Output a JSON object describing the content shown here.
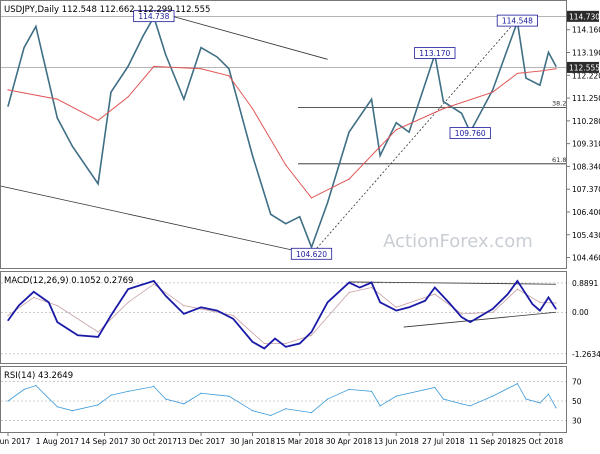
{
  "chart_data": [
    {
      "type": "candlestick",
      "title": "USDJPY,Daily",
      "ohlc_text": "112.548 112.662 112.299 112.555",
      "watermark": "ActionForex.com",
      "y_ticks": [
        104.46,
        105.43,
        106.4,
        107.37,
        108.34,
        109.31,
        110.28,
        111.25,
        112.22,
        113.19,
        114.16
      ],
      "y_tick_labels": [
        "104.460",
        "105.430",
        "106.400",
        "107.370",
        "108.340",
        "109.310",
        "110.280",
        "111.250",
        "112.220",
        "113.190",
        "114.160"
      ],
      "ylim": [
        104.1,
        115.0
      ],
      "price_levels": [
        {
          "label": "114.730",
          "value": 114.73,
          "color": "#333333"
        },
        {
          "label": "112.555",
          "value": 112.555,
          "color": "#333333"
        }
      ],
      "annotations": [
        {
          "text": "114.738",
          "value": 114.738,
          "date": "2017-10-30"
        },
        {
          "text": "104.620",
          "value": 104.62,
          "date": "2018-03-26"
        },
        {
          "text": "113.170",
          "value": 113.17,
          "date": "2018-07-19"
        },
        {
          "text": "109.760",
          "value": 109.76,
          "date": "2018-08-21"
        },
        {
          "text": "114.548",
          "value": 114.548,
          "date": "2018-10-04"
        }
      ],
      "fib_levels": [
        {
          "label": "38.2",
          "value": 110.85
        },
        {
          "label": "61.8",
          "value": 108.45
        }
      ],
      "series": [
        {
          "name": "Close",
          "color": "#3f6f85",
          "x": [
            "2017-06-16",
            "2017-07-01",
            "2017-07-12",
            "2017-08-01",
            "2017-08-15",
            "2017-09-08",
            "2017-09-20",
            "2017-10-06",
            "2017-10-20",
            "2017-10-30",
            "2017-11-10",
            "2017-11-27",
            "2017-12-13",
            "2017-12-28",
            "2018-01-08",
            "2018-01-30",
            "2018-02-16",
            "2018-03-02",
            "2018-03-15",
            "2018-03-26",
            "2018-04-10",
            "2018-04-30",
            "2018-05-21",
            "2018-05-29",
            "2018-06-13",
            "2018-06-25",
            "2018-07-19",
            "2018-07-27",
            "2018-08-13",
            "2018-08-21",
            "2018-09-11",
            "2018-10-04",
            "2018-10-12",
            "2018-10-25",
            "2018-11-02",
            "2018-11-09"
          ],
          "values": [
            110.9,
            113.4,
            114.3,
            110.4,
            109.2,
            107.6,
            111.5,
            112.6,
            113.9,
            114.7,
            113.1,
            111.2,
            113.4,
            113.0,
            112.5,
            108.8,
            106.3,
            105.9,
            106.2,
            104.9,
            106.8,
            109.8,
            111.2,
            108.8,
            110.2,
            109.8,
            113.1,
            111.1,
            110.6,
            109.8,
            111.6,
            114.5,
            112.1,
            111.8,
            113.2,
            112.6
          ]
        },
        {
          "name": "MA",
          "color": "#e05555",
          "x": [
            "2017-06-16",
            "2017-08-01",
            "2017-09-08",
            "2017-10-06",
            "2017-10-30",
            "2017-12-13",
            "2018-01-08",
            "2018-01-30",
            "2018-03-02",
            "2018-03-26",
            "2018-04-30",
            "2018-06-13",
            "2018-07-27",
            "2018-09-11",
            "2018-10-04",
            "2018-10-25",
            "2018-11-09"
          ],
          "values": [
            111.6,
            111.2,
            110.3,
            111.3,
            112.6,
            112.5,
            112.2,
            110.8,
            108.4,
            107.0,
            107.8,
            109.9,
            110.8,
            111.5,
            112.3,
            112.4,
            112.5
          ]
        }
      ],
      "x_tick_labels": [
        "16 Jun 2017",
        "1 Aug 2017",
        "14 Sep 2017",
        "30 Oct 2017",
        "13 Dec 2017",
        "30 Jan 2018",
        "15 Mar 2018",
        "30 Apr 2018",
        "13 Jun 2018",
        "27 Jul 2018",
        "11 Sep 2018",
        "25 Oct 2018"
      ]
    },
    {
      "type": "line",
      "title": "MACD(12,26,9) 0.1052 0.2769",
      "y_tick_labels": [
        "0.8891",
        "0.00",
        "-1.2634"
      ],
      "y_ticks": [
        0.8891,
        0.0,
        -1.2634
      ],
      "ylim": [
        -1.45,
        1.1
      ],
      "series": [
        {
          "name": "MACD",
          "color": "#1a1aa8",
          "x": [
            "2017-06-16",
            "2017-06-26",
            "2017-07-10",
            "2017-07-24",
            "2017-08-01",
            "2017-08-20",
            "2017-09-08",
            "2017-09-20",
            "2017-10-06",
            "2017-10-30",
            "2017-11-10",
            "2017-11-27",
            "2017-12-13",
            "2017-12-28",
            "2018-01-12",
            "2018-01-30",
            "2018-02-10",
            "2018-02-20",
            "2018-03-02",
            "2018-03-15",
            "2018-03-26",
            "2018-04-10",
            "2018-04-30",
            "2018-05-10",
            "2018-05-21",
            "2018-05-29",
            "2018-06-13",
            "2018-06-25",
            "2018-07-10",
            "2018-07-19",
            "2018-08-01",
            "2018-08-13",
            "2018-08-21",
            "2018-09-11",
            "2018-09-25",
            "2018-10-04",
            "2018-10-18",
            "2018-10-25",
            "2018-11-02",
            "2018-11-09"
          ],
          "values": [
            -0.25,
            0.2,
            0.62,
            0.3,
            -0.3,
            -0.7,
            -0.75,
            -0.1,
            0.7,
            0.95,
            0.5,
            -0.05,
            0.15,
            0.05,
            -0.2,
            -0.9,
            -1.1,
            -0.8,
            -1.05,
            -0.95,
            -0.6,
            0.3,
            0.9,
            0.75,
            0.9,
            0.3,
            0.05,
            0.15,
            0.35,
            0.75,
            0.3,
            -0.15,
            -0.3,
            0.1,
            0.55,
            0.95,
            0.25,
            0.05,
            0.45,
            0.1
          ]
        },
        {
          "name": "Signal",
          "color": "#c8a0a0",
          "x": [
            "2017-06-16",
            "2017-07-10",
            "2017-08-01",
            "2017-09-08",
            "2017-10-06",
            "2017-10-30",
            "2017-11-27",
            "2017-12-13",
            "2018-01-12",
            "2018-02-10",
            "2018-03-02",
            "2018-03-26",
            "2018-04-30",
            "2018-05-21",
            "2018-06-13",
            "2018-07-19",
            "2018-08-13",
            "2018-09-11",
            "2018-10-04",
            "2018-10-25",
            "2018-11-09"
          ],
          "values": [
            -0.1,
            0.45,
            0.2,
            -0.6,
            0.3,
            0.85,
            0.2,
            0.1,
            -0.1,
            -0.95,
            -0.95,
            -0.7,
            0.6,
            0.75,
            0.15,
            0.55,
            -0.05,
            0.0,
            0.7,
            0.3,
            0.28
          ]
        }
      ]
    },
    {
      "type": "line",
      "title": "RSI(14) 43.2649",
      "y_tick_labels": [
        "70",
        "50",
        "30"
      ],
      "y_ticks": [
        70,
        50,
        30
      ],
      "ylim": [
        20,
        80
      ],
      "series": [
        {
          "name": "RSI",
          "color": "#3a9ad9",
          "x": [
            "2017-06-16",
            "2017-07-01",
            "2017-07-12",
            "2017-08-01",
            "2017-08-15",
            "2017-09-08",
            "2017-09-20",
            "2017-10-06",
            "2017-10-30",
            "2017-11-10",
            "2017-11-27",
            "2017-12-13",
            "2018-01-08",
            "2018-01-30",
            "2018-02-16",
            "2018-03-02",
            "2018-03-26",
            "2018-04-10",
            "2018-04-30",
            "2018-05-21",
            "2018-05-29",
            "2018-06-13",
            "2018-07-19",
            "2018-07-27",
            "2018-08-13",
            "2018-08-21",
            "2018-09-11",
            "2018-10-04",
            "2018-10-12",
            "2018-10-25",
            "2018-11-02",
            "2018-11-09"
          ],
          "values": [
            50,
            62,
            66,
            44,
            40,
            46,
            56,
            60,
            65,
            52,
            47,
            58,
            55,
            40,
            35,
            42,
            38,
            52,
            62,
            60,
            45,
            55,
            64,
            52,
            47,
            45,
            55,
            68,
            52,
            48,
            57,
            43
          ]
        }
      ]
    }
  ]
}
